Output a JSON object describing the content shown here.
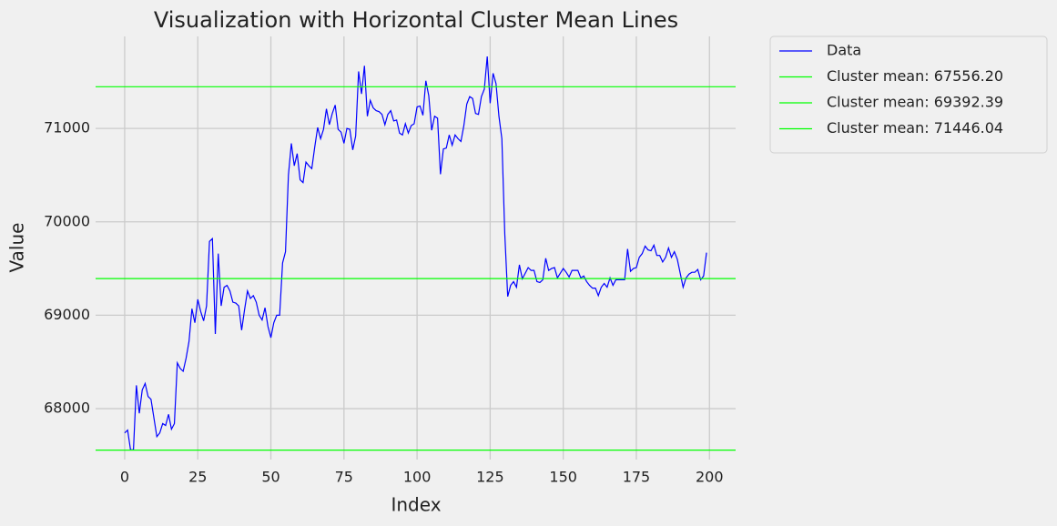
{
  "chart_data": {
    "type": "line",
    "title": "Visualization with Horizontal Cluster Mean Lines",
    "xlabel": "Index",
    "ylabel": "Value",
    "x": [
      0,
      1,
      2,
      3,
      4,
      5,
      6,
      7,
      8,
      9,
      10,
      11,
      12,
      13,
      14,
      15,
      16,
      17,
      18,
      19,
      20,
      21,
      22,
      23,
      24,
      25,
      26,
      27,
      28,
      29,
      30,
      31,
      32,
      33,
      34,
      35,
      36,
      37,
      38,
      39,
      40,
      41,
      42,
      43,
      44,
      45,
      46,
      47,
      48,
      49,
      50,
      51,
      52,
      53,
      54,
      55,
      56,
      57,
      58,
      59,
      60,
      61,
      62,
      63,
      64,
      65,
      66,
      67,
      68,
      69,
      70,
      71,
      72,
      73,
      74,
      75,
      76,
      77,
      78,
      79,
      80,
      81,
      82,
      83,
      84,
      85,
      86,
      87,
      88,
      89,
      90,
      91,
      92,
      93,
      94,
      95,
      96,
      97,
      98,
      99,
      100,
      101,
      102,
      103,
      104,
      105,
      106,
      107,
      108,
      109,
      110,
      111,
      112,
      113,
      114,
      115,
      116,
      117,
      118,
      119,
      120,
      121,
      122,
      123,
      124,
      125,
      126,
      127,
      128,
      129,
      130,
      131,
      132,
      133,
      134,
      135,
      136,
      137,
      138,
      139,
      140,
      141,
      142,
      143,
      144,
      145,
      146,
      147,
      148,
      149,
      150,
      151,
      152,
      153,
      154,
      155,
      156,
      157,
      158,
      159,
      160,
      161,
      162,
      163,
      164,
      165,
      166,
      167,
      168,
      169,
      170,
      171,
      172,
      173,
      174,
      175,
      176,
      177,
      178,
      179,
      180,
      181,
      182,
      183,
      184,
      185,
      186,
      187,
      188,
      189,
      190,
      191,
      192,
      193,
      194,
      195,
      196,
      197,
      198,
      199
    ],
    "series": [
      {
        "name": "Data",
        "color": "#0000ff",
        "values": [
          67740,
          67770,
          67560,
          67560,
          68250,
          67950,
          68200,
          68270,
          68130,
          68100,
          67900,
          67700,
          67740,
          67840,
          67820,
          67940,
          67780,
          67840,
          68490,
          68430,
          68400,
          68540,
          68720,
          69070,
          68920,
          69170,
          69040,
          68940,
          69100,
          69790,
          69820,
          68800,
          69660,
          69100,
          69300,
          69320,
          69260,
          69140,
          69130,
          69100,
          68840,
          69060,
          69260,
          69180,
          69210,
          69140,
          69000,
          68950,
          69080,
          68880,
          68760,
          68920,
          69000,
          69000,
          69560,
          69680,
          70500,
          70840,
          70600,
          70730,
          70450,
          70420,
          70640,
          70600,
          70570,
          70800,
          71010,
          70890,
          70990,
          71210,
          71040,
          71160,
          71250,
          70990,
          70960,
          70840,
          71000,
          70990,
          70770,
          70920,
          71610,
          71370,
          71670,
          71130,
          71300,
          71220,
          71190,
          71180,
          71150,
          71040,
          71150,
          71190,
          71080,
          71090,
          70950,
          70930,
          71050,
          70950,
          71030,
          71050,
          71230,
          71240,
          71140,
          71510,
          71350,
          70980,
          71130,
          71110,
          70510,
          70780,
          70790,
          70930,
          70820,
          70930,
          70890,
          70860,
          71030,
          71260,
          71340,
          71320,
          71160,
          71150,
          71340,
          71420,
          71770,
          71270,
          71590,
          71480,
          71130,
          70890,
          69870,
          69200,
          69320,
          69360,
          69300,
          69540,
          69390,
          69450,
          69510,
          69480,
          69480,
          69360,
          69350,
          69380,
          69610,
          69480,
          69500,
          69510,
          69400,
          69450,
          69500,
          69460,
          69410,
          69480,
          69480,
          69480,
          69400,
          69420,
          69360,
          69320,
          69290,
          69290,
          69210,
          69300,
          69340,
          69300,
          69400,
          69320,
          69380,
          69380,
          69380,
          69380,
          69710,
          69470,
          69500,
          69510,
          69620,
          69660,
          69740,
          69700,
          69690,
          69750,
          69640,
          69640,
          69570,
          69620,
          69720,
          69620,
          69680,
          69600,
          69450,
          69300,
          69400,
          69440,
          69460,
          69460,
          69490,
          69380,
          69420,
          69670
        ]
      }
    ],
    "hlines": [
      {
        "name": "Cluster mean: 67556.20",
        "color": "#00ff00",
        "value": 67556.2
      },
      {
        "name": "Cluster mean: 69392.39",
        "color": "#00ff00",
        "value": 69392.39
      },
      {
        "name": "Cluster mean: 71446.04",
        "color": "#00ff00",
        "value": 71446.04
      }
    ],
    "xlim": [
      -9.95,
      208.95
    ],
    "ylim": [
      67455,
      71985
    ],
    "xticks": [
      0,
      25,
      50,
      75,
      100,
      125,
      150,
      175,
      200
    ],
    "yticks": [
      68000,
      69000,
      70000,
      71000
    ],
    "grid": true,
    "legend": "outside-right"
  }
}
